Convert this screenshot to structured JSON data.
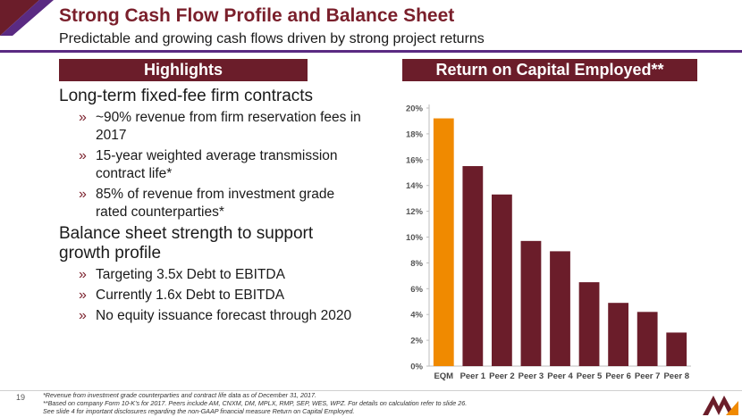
{
  "slide": {
    "title": "Strong Cash Flow Profile and Balance Sheet",
    "subtitle": "Predictable and growing cash flows driven by strong project returns",
    "page_number": "19"
  },
  "highlights": {
    "header": "Highlights",
    "groups": [
      {
        "main": "Long-term fixed-fee firm contracts",
        "subs": [
          "~90% revenue from firm reservation fees in 2017",
          "15-year weighted average transmission contract life*",
          "85% of revenue from investment grade rated counterparties*"
        ]
      },
      {
        "main": "Balance sheet strength to support growth profile",
        "subs": [
          "Targeting 3.5x Debt to EBITDA",
          "Currently 1.6x Debt to EBITDA",
          "No equity issuance forecast through 2020"
        ]
      }
    ],
    "bullet_glyph": "»"
  },
  "chart_header": "Return on Capital Employed**",
  "chart_data": {
    "type": "bar",
    "title": "Return on Capital Employed**",
    "categories": [
      "EQM",
      "Peer 1",
      "Peer 2",
      "Peer 3",
      "Peer 4",
      "Peer 5",
      "Peer 6",
      "Peer 7",
      "Peer 8"
    ],
    "values": [
      19.2,
      15.5,
      13.3,
      9.7,
      8.9,
      6.5,
      4.9,
      4.2,
      2.6
    ],
    "ylim": [
      0,
      20
    ],
    "yticks": [
      0,
      2,
      4,
      6,
      8,
      10,
      12,
      14,
      16,
      18,
      20
    ],
    "tick_suffix": "%",
    "grid": false,
    "highlight_color": "#f08a00",
    "bar_color": "#6b1d2a",
    "xlabel": "",
    "ylabel": ""
  },
  "footnotes": [
    "*Revenue from investment grade counterparties and contract life data as of December 31, 2017.",
    "**Based on company Form 10-K's for 2017. Peers include AM, CNXM, DM, MPLX, RMP, SEP, WES, WPZ. For details on calculation refer to slide 26.",
    "See slide 4 for important disclosures regarding the non-GAAP financial measure Return on Capital Employed."
  ],
  "colors": {
    "title": "#7a1f2b",
    "header_bar": "#6b1d2a",
    "purple_rule": "#5a2a82"
  }
}
